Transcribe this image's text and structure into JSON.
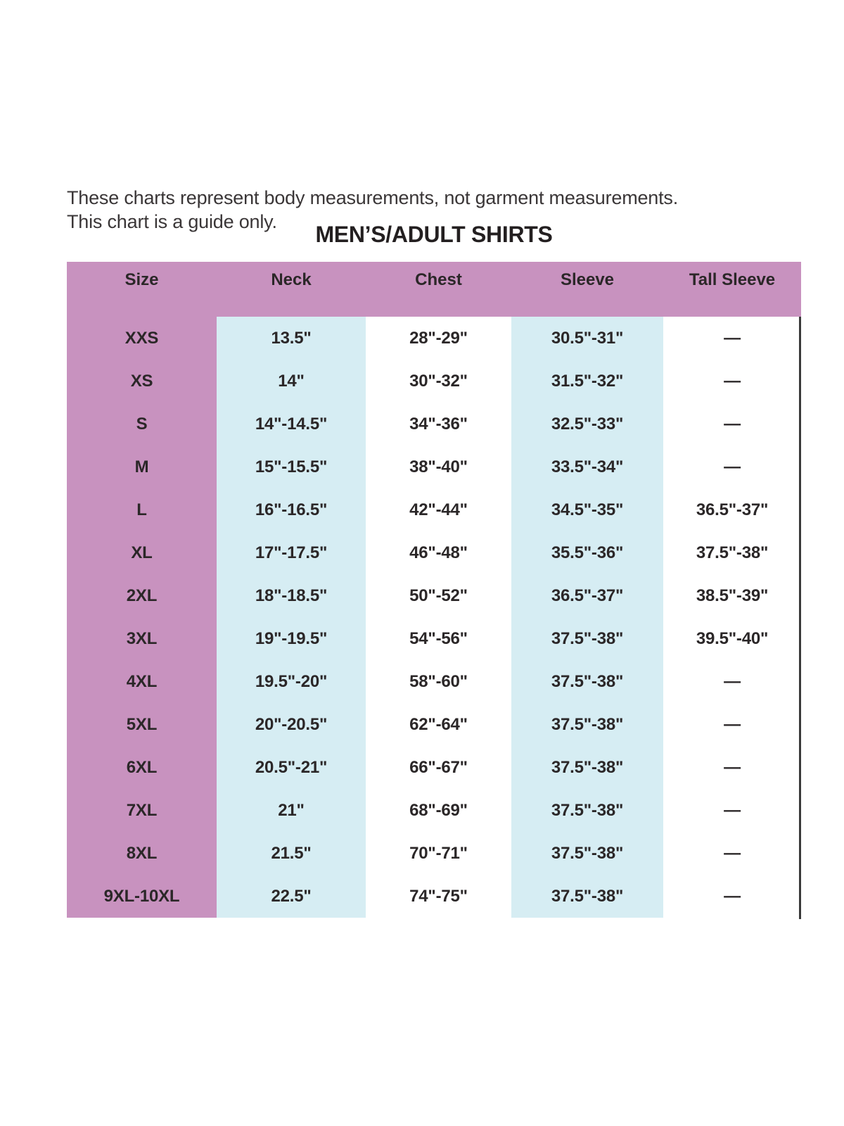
{
  "disclaimer": {
    "line1": "These charts represent body measurements, not garment measurements.",
    "line2": "This chart is a guide only."
  },
  "title": "MEN’S/ADULT SHIRTS",
  "chart_data": {
    "type": "table",
    "title": "MEN’S/ADULT SHIRTS",
    "columns": [
      "Size",
      "Neck",
      "Chest",
      "Sleeve",
      "Tall Sleeve"
    ],
    "rows": [
      {
        "size": "XXS",
        "neck": "13.5\"",
        "chest": "28\"-29\"",
        "sleeve": "30.5\"-31\"",
        "tall_sleeve": "—"
      },
      {
        "size": "XS",
        "neck": "14\"",
        "chest": "30\"-32\"",
        "sleeve": "31.5\"-32\"",
        "tall_sleeve": "—"
      },
      {
        "size": "S",
        "neck": "14\"-14.5\"",
        "chest": "34\"-36\"",
        "sleeve": "32.5\"-33\"",
        "tall_sleeve": "—"
      },
      {
        "size": "M",
        "neck": "15\"-15.5\"",
        "chest": "38\"-40\"",
        "sleeve": "33.5\"-34\"",
        "tall_sleeve": "—"
      },
      {
        "size": "L",
        "neck": "16\"-16.5\"",
        "chest": "42\"-44\"",
        "sleeve": "34.5\"-35\"",
        "tall_sleeve": "36.5\"-37\""
      },
      {
        "size": "XL",
        "neck": "17\"-17.5\"",
        "chest": "46\"-48\"",
        "sleeve": "35.5\"-36\"",
        "tall_sleeve": "37.5\"-38\""
      },
      {
        "size": "2XL",
        "neck": "18\"-18.5\"",
        "chest": "50\"-52\"",
        "sleeve": "36.5\"-37\"",
        "tall_sleeve": "38.5\"-39\""
      },
      {
        "size": "3XL",
        "neck": "19\"-19.5\"",
        "chest": "54\"-56\"",
        "sleeve": "37.5\"-38\"",
        "tall_sleeve": "39.5\"-40\""
      },
      {
        "size": "4XL",
        "neck": "19.5\"-20\"",
        "chest": "58\"-60\"",
        "sleeve": "37.5\"-38\"",
        "tall_sleeve": "—"
      },
      {
        "size": "5XL",
        "neck": "20\"-20.5\"",
        "chest": "62\"-64\"",
        "sleeve": "37.5\"-38\"",
        "tall_sleeve": "—"
      },
      {
        "size": "6XL",
        "neck": "20.5\"-21\"",
        "chest": "66\"-67\"",
        "sleeve": "37.5\"-38\"",
        "tall_sleeve": "—"
      },
      {
        "size": "7XL",
        "neck": "21\"",
        "chest": "68\"-69\"",
        "sleeve": "37.5\"-38\"",
        "tall_sleeve": "—"
      },
      {
        "size": "8XL",
        "neck": "21.5\"",
        "chest": "70\"-71\"",
        "sleeve": "37.5\"-38\"",
        "tall_sleeve": "—"
      },
      {
        "size": "9XL-10XL",
        "neck": "22.5\"",
        "chest": "74\"-75\"",
        "sleeve": "37.5\"-38\"",
        "tall_sleeve": "—"
      }
    ]
  },
  "colors": {
    "header_bg": "#c892bf",
    "size_column_bg": "#c892bf",
    "highlight_column_bg": "#d6edf3",
    "table_text": "#2b2728",
    "right_border": "#3a3a3a"
  }
}
